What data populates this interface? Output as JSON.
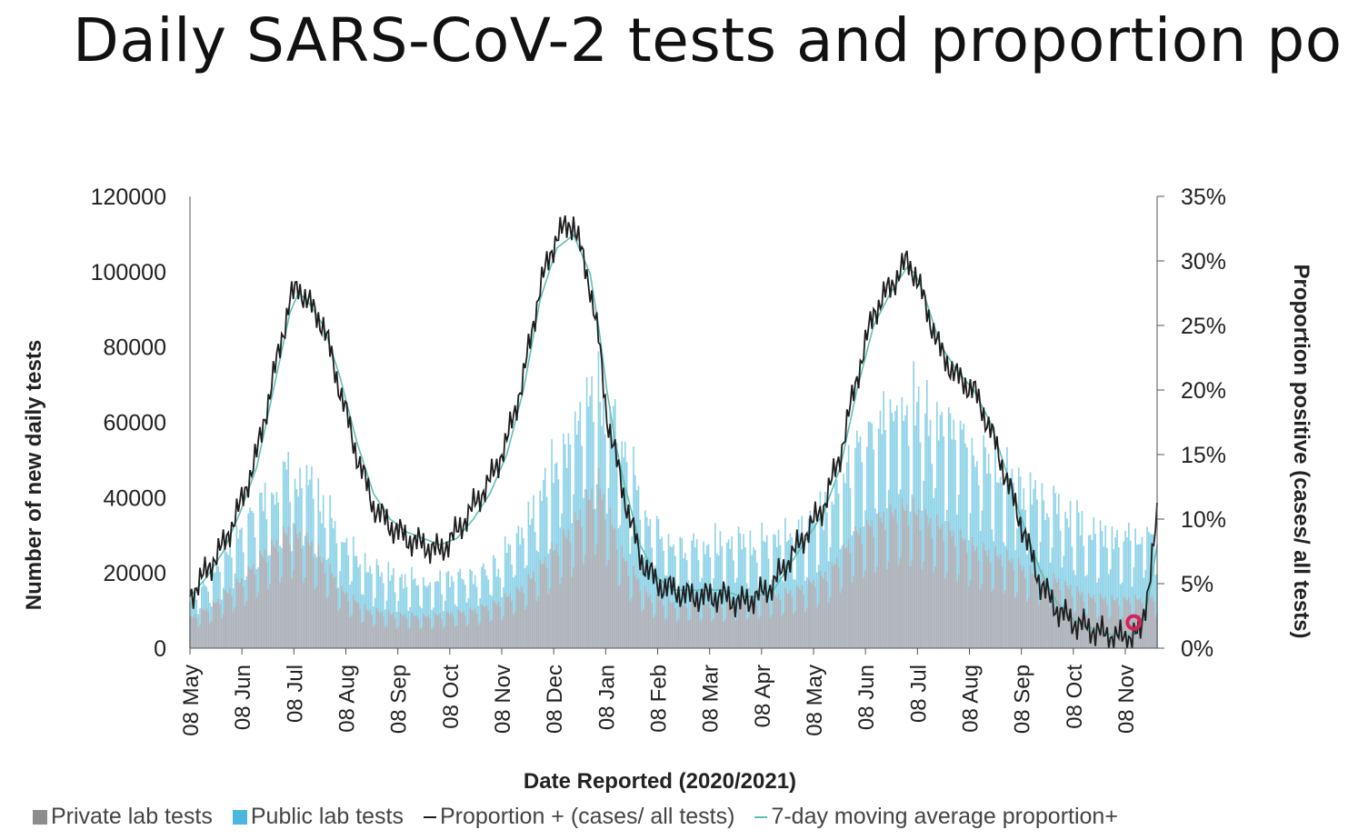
{
  "slide": {
    "title": "Daily SARS-CoV-2 tests and proportion po"
  },
  "colors": {
    "private": "#b5aeb2",
    "public": "#8fd3e8",
    "proportion": "#1e1e1e",
    "moving_avg": "#5fbfb4",
    "marker": "#d6245a",
    "legend_private": "#8c8c8c",
    "legend_public": "#4bb7dc"
  },
  "legend": {
    "private": "Private lab tests",
    "public": "Public lab tests",
    "proportion": "Proportion + (cases/ all tests)",
    "moving_avg": "7-day moving average proportion+"
  },
  "chart_data": {
    "type": "bar",
    "xlabel": "Date Reported (2020/2021)",
    "ylabel": "Number of new daily tests",
    "y2label": "Proportion positive (cases/ all tests)",
    "ylim": [
      0,
      120000
    ],
    "y2lim": [
      0,
      35
    ],
    "y_ticks": [
      "120000",
      "100000",
      "80000",
      "60000",
      "40000",
      "20000",
      "0"
    ],
    "y2_ticks": [
      "35%",
      "30%",
      "25%",
      "20%",
      "15%",
      "10%",
      "5%",
      "0%"
    ],
    "x_ticks": [
      "08 May",
      "08 Jun",
      "08 Jul",
      "08 Aug",
      "08 Sep",
      "08 Oct",
      "08 Nov",
      "08 Dec",
      "08 Jan",
      "08 Feb",
      "08 Mar",
      "08 Apr",
      "08 May",
      "08 Jun",
      "08 Jul",
      "08 Aug",
      "08 Sep",
      "08 Oct",
      "08 Nov"
    ],
    "x_range_days": [
      0,
      580
    ],
    "series": [
      {
        "key": "private",
        "x": [
          0,
          15,
          31,
          46,
          61,
          76,
          92,
          107,
          123,
          138,
          153,
          168,
          184,
          199,
          214,
          229,
          245,
          260,
          275,
          291,
          306,
          321,
          337,
          352,
          367,
          383,
          398,
          413,
          429,
          444,
          459,
          475,
          490,
          505,
          520,
          536,
          551,
          566,
          580
        ],
        "values": [
          8000,
          12000,
          18000,
          26000,
          32000,
          26000,
          15000,
          10000,
          9000,
          8500,
          9000,
          10000,
          12000,
          16000,
          24000,
          32000,
          44000,
          24000,
          14000,
          12000,
          12000,
          12000,
          13000,
          14000,
          16000,
          20000,
          30000,
          34000,
          38000,
          34000,
          30000,
          26000,
          24000,
          20000,
          18000,
          14000,
          13000,
          13000,
          14000
        ]
      },
      {
        "key": "public",
        "x": [
          0,
          15,
          31,
          46,
          61,
          76,
          92,
          107,
          123,
          138,
          153,
          168,
          184,
          199,
          214,
          229,
          245,
          260,
          275,
          291,
          306,
          321,
          337,
          352,
          367,
          383,
          398,
          413,
          429,
          444,
          459,
          475,
          490,
          505,
          520,
          536,
          551,
          566,
          580
        ],
        "values": [
          14000,
          22000,
          32000,
          44000,
          52000,
          44000,
          30000,
          22000,
          20000,
          19000,
          20000,
          21000,
          24000,
          34000,
          48000,
          62000,
          76000,
          56000,
          36000,
          30000,
          30000,
          30000,
          30000,
          32000,
          34000,
          40000,
          56000,
          64000,
          74000,
          68000,
          62000,
          56000,
          50000,
          44000,
          40000,
          34000,
          32000,
          32000,
          34000
        ]
      },
      {
        "key": "proportion",
        "x": [
          0,
          10,
          20,
          30,
          40,
          50,
          60,
          65,
          70,
          75,
          80,
          90,
          100,
          110,
          120,
          130,
          140,
          150,
          160,
          170,
          180,
          190,
          200,
          210,
          220,
          230,
          240,
          245,
          250,
          255,
          260,
          270,
          280,
          290,
          300,
          310,
          320,
          330,
          340,
          350,
          360,
          370,
          380,
          390,
          400,
          410,
          420,
          430,
          435,
          440,
          445,
          450,
          460,
          470,
          480,
          490,
          500,
          510,
          520,
          530,
          540,
          550,
          560,
          570,
          575,
          580
        ],
        "values": [
          4,
          6,
          8,
          11,
          15,
          21,
          27,
          28,
          27,
          26,
          25,
          20,
          15,
          11,
          9.5,
          8.5,
          8,
          7.5,
          9,
          11,
          13,
          16,
          21,
          28,
          32,
          33,
          28,
          24,
          18,
          15,
          12,
          7,
          5,
          4.5,
          4,
          4,
          4,
          3.5,
          4,
          5,
          7,
          9,
          11,
          15,
          21,
          26,
          28,
          30,
          29,
          27,
          25,
          23,
          21,
          20,
          17,
          13,
          9,
          5,
          3,
          2,
          1.5,
          1,
          0.8,
          1.2,
          5,
          10
        ]
      },
      {
        "key": "moving_avg",
        "x": [
          0,
          10,
          20,
          30,
          40,
          50,
          60,
          65,
          70,
          75,
          80,
          90,
          100,
          110,
          120,
          130,
          140,
          150,
          160,
          170,
          180,
          190,
          200,
          210,
          220,
          230,
          240,
          245,
          250,
          255,
          260,
          270,
          280,
          290,
          300,
          310,
          320,
          330,
          340,
          350,
          360,
          370,
          380,
          390,
          400,
          410,
          420,
          430,
          435,
          440,
          445,
          450,
          460,
          470,
          480,
          490,
          500,
          510,
          520,
          530,
          540,
          550,
          560,
          570,
          575,
          580
        ],
        "values": [
          4,
          5.5,
          7.5,
          10.5,
          14,
          20,
          26,
          27.5,
          27,
          26,
          25,
          21,
          16,
          12,
          10,
          9,
          8.5,
          8,
          8.5,
          10,
          12,
          15,
          20,
          27,
          31,
          32,
          29,
          25,
          20,
          16,
          13,
          8,
          5.5,
          4.5,
          4.5,
          4.5,
          4.5,
          4,
          4,
          4.5,
          6.5,
          8.5,
          10.5,
          14,
          20,
          25,
          27.5,
          29.5,
          29,
          27.5,
          25.5,
          23.5,
          21.5,
          20,
          17.5,
          13.5,
          9.5,
          6,
          3.5,
          2.2,
          1.6,
          1.1,
          0.9,
          1.2,
          4,
          8
        ]
      }
    ],
    "marker_day": 566,
    "marker_proportion": 2,
    "grid": false,
    "legend_position": "bottom"
  }
}
